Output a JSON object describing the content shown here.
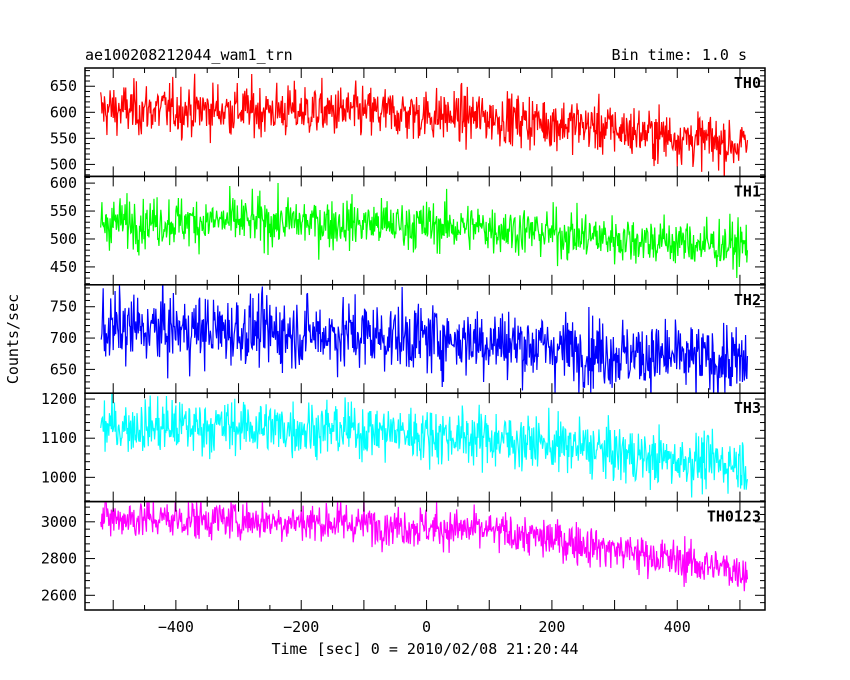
{
  "chart_data": {
    "type": "line",
    "title": "ae100208212044_wam1_trn",
    "subtitle": "Bin time: 1.0 s",
    "xlabel": "Time [sec] 0 = 2010/02/08 21:20:44",
    "ylabel": "Counts/sec",
    "xlim": [
      -545,
      540
    ],
    "x_ticks": [
      -400,
      -200,
      0,
      200,
      400
    ],
    "x_range_data": [
      -520,
      512
    ],
    "bin_time_s": 1.0,
    "grid": false,
    "panels": [
      {
        "name": "TH0",
        "color": "#ff0000",
        "ylim": [
          477,
          685
        ],
        "y_ticks": [
          500,
          550,
          600,
          650
        ],
        "trend_x": [
          -520,
          -300,
          -100,
          100,
          250,
          350,
          450,
          512
        ],
        "trend_y": [
          605,
          605,
          600,
          590,
          575,
          560,
          545,
          535
        ],
        "noise": 25
      },
      {
        "name": "TH1",
        "color": "#00ff00",
        "ylim": [
          418,
          612
        ],
        "y_ticks": [
          450,
          500,
          550,
          600
        ],
        "trend_x": [
          -520,
          -300,
          -100,
          100,
          250,
          350,
          450,
          512
        ],
        "trend_y": [
          530,
          532,
          528,
          520,
          505,
          498,
          490,
          488
        ],
        "noise": 22
      },
      {
        "name": "TH2",
        "color": "#0000ff",
        "ylim": [
          612,
          785
        ],
        "y_ticks": [
          650,
          700,
          750
        ],
        "trend_x": [
          -520,
          -300,
          -100,
          100,
          250,
          350,
          450,
          512
        ],
        "trend_y": [
          715,
          712,
          705,
          695,
          680,
          672,
          665,
          660
        ],
        "noise": 28
      },
      {
        "name": "TH3",
        "color": "#00ffff",
        "ylim": [
          938,
          1215
        ],
        "y_ticks": [
          1000,
          1100,
          1200
        ],
        "trend_x": [
          -520,
          -300,
          -100,
          100,
          250,
          350,
          450,
          512
        ],
        "trend_y": [
          1130,
          1130,
          1120,
          1100,
          1075,
          1050,
          1040,
          1035
        ],
        "noise": 35
      },
      {
        "name": "TH0123",
        "color": "#ff00ff",
        "ylim": [
          2520,
          3110
        ],
        "y_ticks": [
          2600,
          2800,
          3000
        ],
        "trend_x": [
          -520,
          -300,
          -100,
          100,
          250,
          350,
          450,
          512
        ],
        "trend_y": [
          3020,
          3010,
          2990,
          2950,
          2880,
          2820,
          2760,
          2730
        ],
        "noise": 55
      }
    ]
  }
}
